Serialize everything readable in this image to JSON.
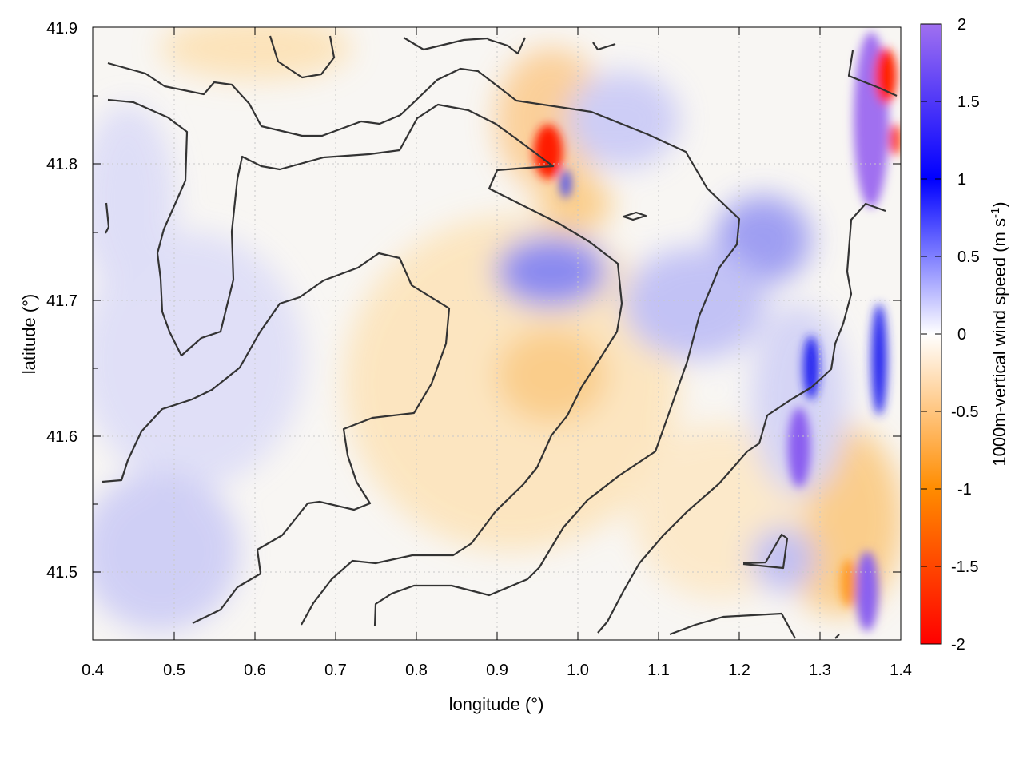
{
  "chart_data": {
    "type": "heatmap",
    "xlabel": "longitude (°)",
    "ylabel": "latitude (°)",
    "xlim": [
      0.4,
      1.4
    ],
    "ylim": [
      41.45,
      41.9
    ],
    "xticks": [
      "0.4",
      "0.5",
      "0.6",
      "0.7",
      "0.8",
      "0.9",
      "1.0",
      "1.1",
      "1.2",
      "1.3",
      "1.4"
    ],
    "yticks": [
      "41.5",
      "41.6",
      "41.7",
      "41.8",
      "41.9"
    ],
    "grid": true,
    "colorbar": {
      "label": "1000m-vertical wind speed (m s",
      "label_sup": "-1",
      "label_end": ")",
      "range": [
        -2,
        2
      ],
      "ticks": [
        "2",
        "1.5",
        "1",
        "0.5",
        "0",
        "-0.5",
        "-1",
        "-1.5",
        "-2"
      ],
      "colors": [
        "#ff0000",
        "#ff8c00",
        "#ffffff",
        "#0000ff",
        "#a070f0"
      ]
    },
    "features": [
      {
        "lon": 0.965,
        "lat": 41.81,
        "value": -1.8
      },
      {
        "lon": 0.985,
        "lat": 41.77,
        "value": 0.9
      },
      {
        "lon": 0.96,
        "lat": 41.72,
        "value": 0.9
      },
      {
        "lon": 1.17,
        "lat": 41.73,
        "value": 0.6
      },
      {
        "lon": 1.35,
        "lat": 41.82,
        "value": 2.0
      },
      {
        "lon": 1.385,
        "lat": 41.86,
        "value": -1.8
      },
      {
        "lon": 1.285,
        "lat": 41.58,
        "value": 1.8
      },
      {
        "lon": 1.35,
        "lat": 41.48,
        "value": 1.5
      },
      {
        "lon": 1.33,
        "lat": 41.53,
        "value": -0.9
      },
      {
        "lon": 0.97,
        "lat": 41.63,
        "value": -0.4
      },
      {
        "lon": 0.45,
        "lat": 41.49,
        "value": 0.5
      }
    ]
  }
}
